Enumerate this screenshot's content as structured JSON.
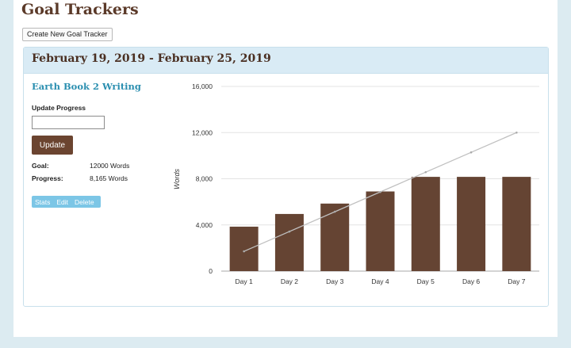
{
  "header": {
    "title": "Goal Trackers",
    "create_button": "Create New Goal Tracker"
  },
  "panel": {
    "date_range": "February 19, 2019 - February 25, 2019",
    "tracker_name": "Earth Book 2 Writing",
    "update_label": "Update Progress",
    "update_input_value": "",
    "update_button": "Update",
    "goal_label": "Goal:",
    "goal_value": "12000 Words",
    "progress_label": "Progress:",
    "progress_value": "8,165 Words",
    "actions": [
      "Stats",
      "Edit",
      "Delete"
    ]
  },
  "colors": {
    "bar": "#654433",
    "line": "#c0c0c0",
    "accent_link": "#2b8fb0",
    "title": "#5b3a29"
  },
  "chart_data": {
    "type": "bar",
    "ylabel": "Words",
    "xlabel": "",
    "categories": [
      "Day 1",
      "Day 2",
      "Day 3",
      "Day 4",
      "Day 5",
      "Day 6",
      "Day 7"
    ],
    "series": [
      {
        "type": "bar",
        "values": [
          3850,
          4950,
          5850,
          6900,
          8165,
          8165,
          8165
        ]
      },
      {
        "type": "line",
        "values": [
          1714,
          3429,
          5143,
          6857,
          8571,
          10286,
          12000
        ]
      }
    ],
    "yticks": [
      "0",
      "4,000",
      "8,000",
      "12,000",
      "16,000"
    ],
    "ylim": [
      0,
      16000
    ],
    "grid": true
  }
}
